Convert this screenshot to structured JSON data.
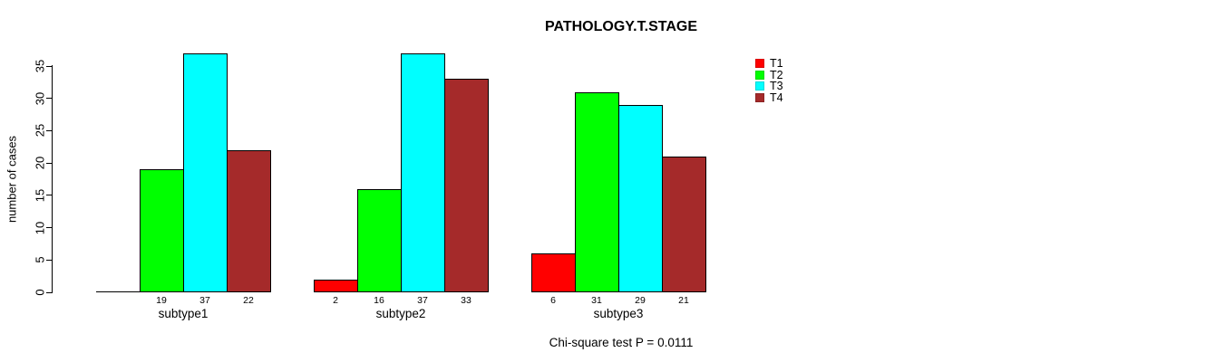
{
  "chart_data": {
    "type": "bar",
    "title": "PATHOLOGY.T.STAGE",
    "xlabel": "",
    "ylabel": "number of cases",
    "categories": [
      "subtype1",
      "subtype2",
      "subtype3"
    ],
    "series": [
      {
        "name": "T1",
        "color": "#FF0000",
        "values": [
          0,
          2,
          6
        ]
      },
      {
        "name": "T2",
        "color": "#00FF00",
        "values": [
          19,
          16,
          31
        ]
      },
      {
        "name": "T3",
        "color": "#00FFFF",
        "values": [
          37,
          37,
          29
        ]
      },
      {
        "name": "T4",
        "color": "#A52A2A",
        "values": [
          22,
          33,
          21
        ]
      }
    ],
    "ylim": [
      0,
      35
    ],
    "yticks": [
      0,
      5,
      10,
      15,
      20,
      25,
      30,
      35
    ],
    "grid": false,
    "bar_value_labels": "shown under each bar; hidden when value is 0",
    "legend_position": "top-right",
    "legend_entries": [
      "T1",
      "T2",
      "T3",
      "T4"
    ],
    "annotation": "Chi-square test P = 0.0111",
    "colors": {
      "background": "#FFFFFF",
      "axis": "#000000",
      "text": "#000000"
    }
  }
}
